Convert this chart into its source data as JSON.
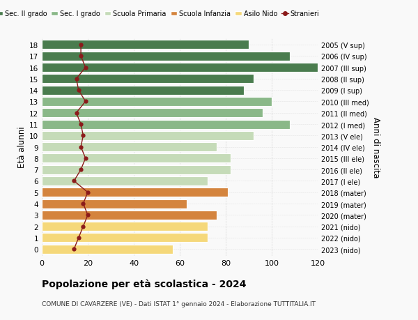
{
  "ages": [
    18,
    17,
    16,
    15,
    14,
    13,
    12,
    11,
    10,
    9,
    8,
    7,
    6,
    5,
    4,
    3,
    2,
    1,
    0
  ],
  "years": [
    "2005 (V sup)",
    "2006 (IV sup)",
    "2007 (III sup)",
    "2008 (II sup)",
    "2009 (I sup)",
    "2010 (III med)",
    "2011 (II med)",
    "2012 (I med)",
    "2013 (V ele)",
    "2014 (IV ele)",
    "2015 (III ele)",
    "2016 (II ele)",
    "2017 (I ele)",
    "2018 (mater)",
    "2019 (mater)",
    "2020 (mater)",
    "2021 (nido)",
    "2022 (nido)",
    "2023 (nido)"
  ],
  "bar_values": [
    90,
    108,
    120,
    92,
    88,
    100,
    96,
    108,
    92,
    76,
    82,
    82,
    72,
    81,
    63,
    76,
    72,
    72,
    57
  ],
  "bar_colors": [
    "#4a7c4e",
    "#4a7c4e",
    "#4a7c4e",
    "#4a7c4e",
    "#4a7c4e",
    "#8ab888",
    "#8ab888",
    "#8ab888",
    "#c5dbb8",
    "#c5dbb8",
    "#c5dbb8",
    "#c5dbb8",
    "#c5dbb8",
    "#d4843e",
    "#d4843e",
    "#d4843e",
    "#f5d87a",
    "#f5d87a",
    "#f5d87a"
  ],
  "stranieri_values": [
    17,
    17,
    19,
    15,
    16,
    19,
    15,
    17,
    18,
    17,
    19,
    17,
    14,
    20,
    18,
    20,
    18,
    16,
    14
  ],
  "stranieri_color": "#8b1a1a",
  "legend_labels": [
    "Sec. II grado",
    "Sec. I grado",
    "Scuola Primaria",
    "Scuola Infanzia",
    "Asilo Nido",
    "Stranieri"
  ],
  "legend_colors": [
    "#4a7c4e",
    "#8ab888",
    "#c5dbb8",
    "#d4843e",
    "#f5d87a",
    "#8b1a1a"
  ],
  "ylabel": "Età alunni",
  "ylabel_right": "Anni di nascita",
  "title": "Popolazione per età scolastica - 2024",
  "subtitle": "COMUNE DI CAVARZERE (VE) - Dati ISTAT 1° gennaio 2024 - Elaborazione TUTTITALIA.IT",
  "xlim": [
    0,
    120
  ],
  "xticks": [
    0,
    20,
    40,
    60,
    80,
    100,
    120
  ],
  "background_color": "#f9f9f9",
  "bar_edgecolor": "white",
  "grid_color": "#cccccc"
}
